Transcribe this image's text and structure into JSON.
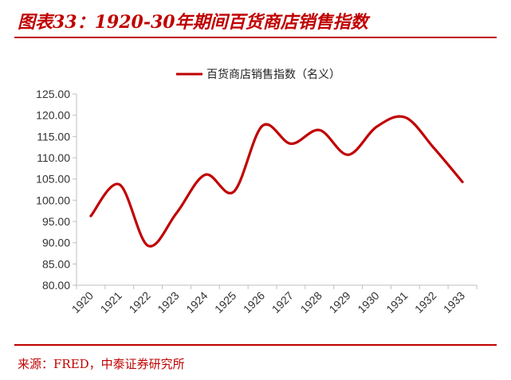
{
  "title": "图表33：1920-30年期间百货商店销售指数",
  "source": "来源：FRED，中泰证券研究所",
  "colors": {
    "accent": "#c00000",
    "line": "#c00000",
    "axis": "#bfbfbf"
  },
  "chart_data": {
    "type": "line",
    "categories": [
      "1920",
      "1921",
      "1922",
      "1923",
      "1924",
      "1925",
      "1926",
      "1927",
      "1928",
      "1929",
      "1930",
      "1931",
      "1932",
      "1933"
    ],
    "series": [
      {
        "name": "百货商店销售指数（名义）",
        "values": [
          96.3,
          103.7,
          89.3,
          97.0,
          106.0,
          102.0,
          117.5,
          113.3,
          116.5,
          110.7,
          117.3,
          119.5,
          112.3,
          104.3
        ]
      }
    ],
    "y_ticks": [
      "80.00",
      "85.00",
      "90.00",
      "95.00",
      "100.00",
      "105.00",
      "110.00",
      "115.00",
      "120.00",
      "125.00"
    ],
    "ylim": [
      80,
      125
    ],
    "legend_position": "top",
    "grid": false,
    "smooth": true
  }
}
